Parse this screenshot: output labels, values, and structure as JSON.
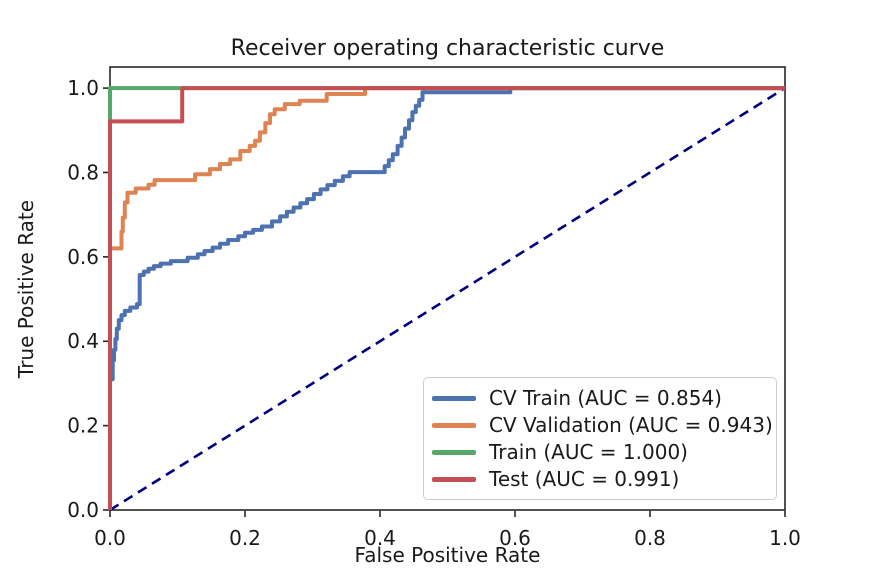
{
  "title": "Receiver operating characteristic curve",
  "chart_data": {
    "type": "line",
    "subtype": "roc-step-curves",
    "title": "Receiver operating characteristic curve",
    "xlabel": "False Positive Rate",
    "ylabel": "True Positive Rate",
    "xlim": [
      0.0,
      1.0
    ],
    "ylim": [
      0.0,
      1.05
    ],
    "grid": false,
    "legend_position": "lower right",
    "xticks": [
      0.0,
      0.2,
      0.4,
      0.6,
      0.8,
      1.0
    ],
    "xtick_labels": [
      "0.0",
      "0.2",
      "0.4",
      "0.6",
      "0.8",
      "1.0"
    ],
    "yticks": [
      0.0,
      0.2,
      0.4,
      0.6,
      0.8,
      1.0
    ],
    "ytick_labels": [
      "0.0",
      "0.2",
      "0.4",
      "0.6",
      "0.8",
      "1.0"
    ],
    "diagonal": {
      "name": "chance line",
      "from": [
        0,
        0
      ],
      "to": [
        1,
        1
      ],
      "color": "#000080",
      "style": "dashed",
      "dash": [
        10,
        6.5
      ],
      "width": 2.6
    },
    "points_format": "step knots [fpr, tpr]; curve is flat from previous knot then steps vertically at each knot x",
    "series": [
      {
        "id": "cv-train",
        "name": "CV Train (AUC = 0.854)",
        "auc": 0.854,
        "color": "#4C72B0",
        "width": 4,
        "step_points": [
          [
            0,
            0
          ],
          [
            0,
            0.31
          ],
          [
            0.004,
            0.355
          ],
          [
            0.006,
            0.38
          ],
          [
            0.008,
            0.405
          ],
          [
            0.01,
            0.43
          ],
          [
            0.013,
            0.45
          ],
          [
            0.017,
            0.462
          ],
          [
            0.022,
            0.472
          ],
          [
            0.03,
            0.48
          ],
          [
            0.04,
            0.488
          ],
          [
            0.044,
            0.557
          ],
          [
            0.05,
            0.565
          ],
          [
            0.057,
            0.572
          ],
          [
            0.065,
            0.578
          ],
          [
            0.075,
            0.584
          ],
          [
            0.09,
            0.59
          ],
          [
            0.115,
            0.598
          ],
          [
            0.13,
            0.606
          ],
          [
            0.14,
            0.614
          ],
          [
            0.152,
            0.622
          ],
          [
            0.163,
            0.631
          ],
          [
            0.175,
            0.64
          ],
          [
            0.19,
            0.649
          ],
          [
            0.2,
            0.657
          ],
          [
            0.212,
            0.664
          ],
          [
            0.225,
            0.672
          ],
          [
            0.24,
            0.684
          ],
          [
            0.252,
            0.696
          ],
          [
            0.262,
            0.707
          ],
          [
            0.272,
            0.717
          ],
          [
            0.282,
            0.727
          ],
          [
            0.292,
            0.737
          ],
          [
            0.302,
            0.749
          ],
          [
            0.312,
            0.76
          ],
          [
            0.322,
            0.77
          ],
          [
            0.333,
            0.78
          ],
          [
            0.345,
            0.791
          ],
          [
            0.355,
            0.801
          ],
          [
            0.407,
            0.815
          ],
          [
            0.413,
            0.829
          ],
          [
            0.419,
            0.843
          ],
          [
            0.426,
            0.863
          ],
          [
            0.432,
            0.883
          ],
          [
            0.437,
            0.904
          ],
          [
            0.443,
            0.924
          ],
          [
            0.448,
            0.943
          ],
          [
            0.453,
            0.958
          ],
          [
            0.458,
            0.972
          ],
          [
            0.463,
            0.99
          ],
          [
            0.593,
            1.0
          ],
          [
            1,
            1
          ]
        ]
      },
      {
        "id": "cv-validation",
        "name": "CV Validation (AUC = 0.943)",
        "auc": 0.943,
        "color": "#DD8452",
        "width": 4,
        "step_points": [
          [
            0,
            0
          ],
          [
            0,
            0.62
          ],
          [
            0.017,
            0.66
          ],
          [
            0.019,
            0.693
          ],
          [
            0.022,
            0.729
          ],
          [
            0.026,
            0.752
          ],
          [
            0.038,
            0.762
          ],
          [
            0.057,
            0.771
          ],
          [
            0.066,
            0.782
          ],
          [
            0.126,
            0.796
          ],
          [
            0.148,
            0.808
          ],
          [
            0.163,
            0.82
          ],
          [
            0.178,
            0.831
          ],
          [
            0.193,
            0.851
          ],
          [
            0.207,
            0.863
          ],
          [
            0.215,
            0.875
          ],
          [
            0.222,
            0.895
          ],
          [
            0.23,
            0.917
          ],
          [
            0.237,
            0.938
          ],
          [
            0.244,
            0.95
          ],
          [
            0.259,
            0.962
          ],
          [
            0.281,
            0.97
          ],
          [
            0.321,
            0.986
          ],
          [
            0.378,
            1.0
          ],
          [
            1,
            1
          ]
        ]
      },
      {
        "id": "train",
        "name": "Train (AUC = 1.000)",
        "auc": 1.0,
        "color": "#55A868",
        "width": 4,
        "step_points": [
          [
            0,
            0
          ],
          [
            0,
            1
          ],
          [
            1,
            1
          ]
        ]
      },
      {
        "id": "test",
        "name": "Test (AUC = 0.991)",
        "auc": 0.991,
        "color": "#C44E52",
        "width": 4,
        "step_points": [
          [
            0,
            0
          ],
          [
            0,
            0.921
          ],
          [
            0.107,
            1
          ],
          [
            1,
            1
          ]
        ]
      }
    ]
  },
  "style": {
    "spine_color": "#262626",
    "tick_color": "#262626",
    "text_color": "#1a1a1a",
    "background": "#ffffff",
    "legend_border": "#cccccc"
  }
}
